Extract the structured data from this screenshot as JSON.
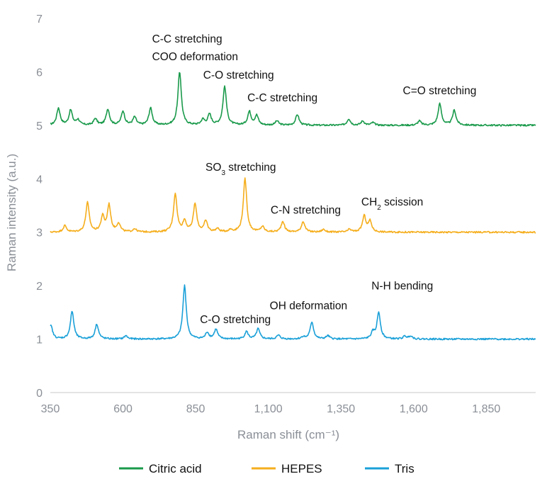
{
  "chart_data": {
    "type": "line",
    "xlabel": "Raman shift (cm⁻¹)",
    "ylabel": "Raman intensity (a.u.)",
    "xlim": [
      350,
      2020
    ],
    "ylim": [
      0,
      7
    ],
    "x_ticks": [
      350,
      600,
      850,
      1100,
      1350,
      1600,
      1850
    ],
    "x_tick_labels": [
      "350",
      "600",
      "850",
      "1,100",
      "1,350",
      "1,600",
      "1,850"
    ],
    "y_ticks": [
      0,
      1,
      2,
      3,
      4,
      5,
      6,
      7
    ],
    "y_tick_labels": [
      "0",
      "1",
      "2",
      "3",
      "4",
      "5",
      "6",
      "7"
    ],
    "grid": false,
    "legend_position": "bottom",
    "series": [
      {
        "name": "Citric acid",
        "color": "#1a9a4b",
        "baseline": 5.0,
        "peaks": [
          [
            378,
            0.32
          ],
          [
            420,
            0.28
          ],
          [
            445,
            0.1
          ],
          [
            505,
            0.12
          ],
          [
            548,
            0.3
          ],
          [
            600,
            0.26
          ],
          [
            640,
            0.15
          ],
          [
            695,
            0.32
          ],
          [
            795,
            1.0
          ],
          [
            875,
            0.1
          ],
          [
            898,
            0.2
          ],
          [
            950,
            0.73
          ],
          [
            1035,
            0.25
          ],
          [
            1060,
            0.18
          ],
          [
            1130,
            0.08
          ],
          [
            1200,
            0.2
          ],
          [
            1377,
            0.12
          ],
          [
            1425,
            0.08
          ],
          [
            1460,
            0.05
          ],
          [
            1620,
            0.08
          ],
          [
            1690,
            0.4
          ],
          [
            1740,
            0.28
          ]
        ]
      },
      {
        "name": "HEPES",
        "color": "#f5ae1c",
        "baseline": 3.0,
        "peaks": [
          [
            400,
            0.12
          ],
          [
            478,
            0.55
          ],
          [
            530,
            0.28
          ],
          [
            552,
            0.5
          ],
          [
            585,
            0.16
          ],
          [
            640,
            0.06
          ],
          [
            780,
            0.72
          ],
          [
            812,
            0.2
          ],
          [
            848,
            0.52
          ],
          [
            885,
            0.2
          ],
          [
            925,
            0.06
          ],
          [
            970,
            0.04
          ],
          [
            1020,
            1.0
          ],
          [
            1080,
            0.1
          ],
          [
            1150,
            0.2
          ],
          [
            1220,
            0.2
          ],
          [
            1290,
            0.05
          ],
          [
            1380,
            0.05
          ],
          [
            1430,
            0.3
          ],
          [
            1450,
            0.2
          ]
        ]
      },
      {
        "name": "Tris",
        "color": "#1aa0d8",
        "baseline": 1.0,
        "peaks": [
          [
            352,
            0.25
          ],
          [
            425,
            0.52
          ],
          [
            510,
            0.28
          ],
          [
            610,
            0.06
          ],
          [
            812,
            1.0
          ],
          [
            890,
            0.12
          ],
          [
            920,
            0.18
          ],
          [
            1025,
            0.14
          ],
          [
            1065,
            0.19
          ],
          [
            1135,
            0.07
          ],
          [
            1220,
            0.04
          ],
          [
            1250,
            0.32
          ],
          [
            1305,
            0.06
          ],
          [
            1460,
            0.12
          ],
          [
            1480,
            0.5
          ],
          [
            1570,
            0.05
          ],
          [
            1590,
            0.06
          ]
        ]
      }
    ],
    "annotations": [
      {
        "series": "Citric acid",
        "parts": [
          {
            "text": "C-C stretching"
          }
        ],
        "x": 700,
        "y": 6.55
      },
      {
        "series": "Citric acid",
        "parts": [
          {
            "text": "COO deformation"
          }
        ],
        "x": 700,
        "y": 6.22
      },
      {
        "series": "Citric acid",
        "parts": [
          {
            "text": "C-O stretching"
          }
        ],
        "x": 876,
        "y": 5.87
      },
      {
        "series": "Citric acid",
        "parts": [
          {
            "text": "C-C stretching"
          }
        ],
        "x": 1028,
        "y": 5.45
      },
      {
        "series": "Citric acid",
        "parts": [
          {
            "text": "C=O stretching"
          }
        ],
        "x": 1563,
        "y": 5.58
      },
      {
        "series": "HEPES",
        "parts": [
          {
            "text": "SO"
          },
          {
            "text": "3",
            "sub": true
          },
          {
            "text": " stretching"
          }
        ],
        "x": 884,
        "y": 4.15
      },
      {
        "series": "HEPES",
        "parts": [
          {
            "text": "C-N stretching"
          }
        ],
        "x": 1108,
        "y": 3.35
      },
      {
        "series": "HEPES",
        "parts": [
          {
            "text": "CH"
          },
          {
            "text": "2",
            "sub": true
          },
          {
            "text": " scission"
          }
        ],
        "x": 1420,
        "y": 3.5
      },
      {
        "series": "Tris",
        "parts": [
          {
            "text": "C-O stretching"
          }
        ],
        "x": 865,
        "y": 1.3
      },
      {
        "series": "Tris",
        "parts": [
          {
            "text": "OH deformation"
          }
        ],
        "x": 1105,
        "y": 1.56
      },
      {
        "series": "Tris",
        "parts": [
          {
            "text": "N-H bending"
          }
        ],
        "x": 1455,
        "y": 1.93
      }
    ]
  }
}
